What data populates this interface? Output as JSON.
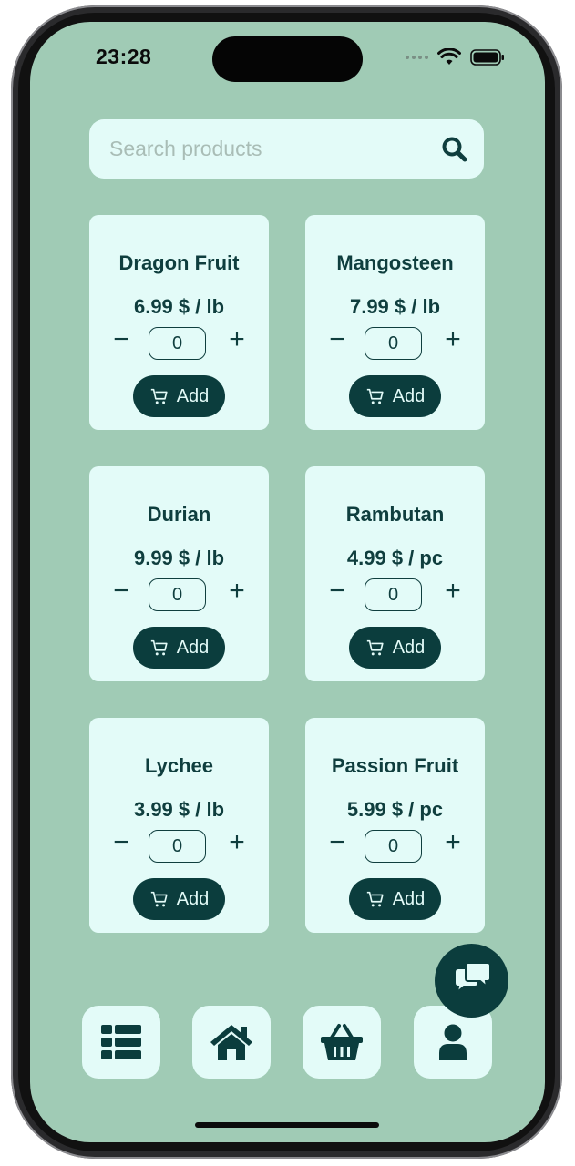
{
  "status_bar": {
    "time": "23:28"
  },
  "search": {
    "placeholder": "Search products"
  },
  "products": [
    {
      "name": "Dragon Fruit",
      "price": "6.99 $ / lb",
      "quantity": "0",
      "add_label": "Add"
    },
    {
      "name": "Mangosteen",
      "price": "7.99 $ / lb",
      "quantity": "0",
      "add_label": "Add"
    },
    {
      "name": "Durian",
      "price": "9.99 $ / lb",
      "quantity": "0",
      "add_label": "Add"
    },
    {
      "name": "Rambutan",
      "price": "4.99 $ / pc",
      "quantity": "0",
      "add_label": "Add"
    },
    {
      "name": "Lychee",
      "price": "3.99 $ / lb",
      "quantity": "0",
      "add_label": "Add"
    },
    {
      "name": "Passion Fruit",
      "price": "5.99 $ / pc",
      "quantity": "0",
      "add_label": "Add"
    }
  ],
  "stepper": {
    "minus": "−",
    "plus": "+"
  },
  "bottom_nav": [
    {
      "icon": "list-icon"
    },
    {
      "icon": "home-icon"
    },
    {
      "icon": "basket-icon"
    },
    {
      "icon": "user-icon"
    }
  ],
  "fab": {
    "icon": "chat-icon"
  },
  "colors": {
    "background": "#a0cbb5",
    "card": "#e3fbf8",
    "accent": "#0b3d3d",
    "text": "#0f3e3e"
  }
}
